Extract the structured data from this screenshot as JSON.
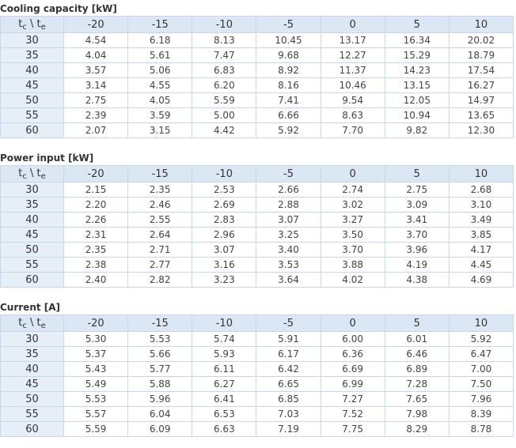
{
  "corner": [
    "t",
    "c",
    " \\ ",
    "t",
    "e"
  ],
  "columns": [
    "-20",
    "-15",
    "-10",
    "-5",
    "0",
    "5",
    "10"
  ],
  "tables": [
    {
      "title": "Cooling capacity [kW]",
      "rows": [
        [
          "30",
          "4.54",
          "6.18",
          "8.13",
          "10.45",
          "13.17",
          "16.34",
          "20.02"
        ],
        [
          "35",
          "4.04",
          "5.61",
          "7.47",
          "9.68",
          "12.27",
          "15.29",
          "18.79"
        ],
        [
          "40",
          "3.57",
          "5.06",
          "6.83",
          "8.92",
          "11.37",
          "14.23",
          "17.54"
        ],
        [
          "45",
          "3.14",
          "4.55",
          "6.20",
          "8.16",
          "10.46",
          "13.15",
          "16.27"
        ],
        [
          "50",
          "2.75",
          "4.05",
          "5.59",
          "7.41",
          "9.54",
          "12.05",
          "14.97"
        ],
        [
          "55",
          "2.39",
          "3.59",
          "5.00",
          "6.66",
          "8.63",
          "10.94",
          "13.65"
        ],
        [
          "60",
          "2.07",
          "3.15",
          "4.42",
          "5.92",
          "7.70",
          "9.82",
          "12.30"
        ]
      ]
    },
    {
      "title": "Power input [kW]",
      "rows": [
        [
          "30",
          "2.15",
          "2.35",
          "2.53",
          "2.66",
          "2.74",
          "2.75",
          "2.68"
        ],
        [
          "35",
          "2.20",
          "2.46",
          "2.69",
          "2.88",
          "3.02",
          "3.09",
          "3.10"
        ],
        [
          "40",
          "2.26",
          "2.55",
          "2.83",
          "3.07",
          "3.27",
          "3.41",
          "3.49"
        ],
        [
          "45",
          "2.31",
          "2.64",
          "2.96",
          "3.25",
          "3.50",
          "3.70",
          "3.85"
        ],
        [
          "50",
          "2.35",
          "2.71",
          "3.07",
          "3.40",
          "3.70",
          "3.96",
          "4.17"
        ],
        [
          "55",
          "2.38",
          "2.77",
          "3.16",
          "3.53",
          "3.88",
          "4.19",
          "4.45"
        ],
        [
          "60",
          "2.40",
          "2.82",
          "3.23",
          "3.64",
          "4.02",
          "4.38",
          "4.69"
        ]
      ]
    },
    {
      "title": "Current [A]",
      "rows": [
        [
          "30",
          "5.30",
          "5.53",
          "5.74",
          "5.91",
          "6.00",
          "6.01",
          "5.92"
        ],
        [
          "35",
          "5.37",
          "5.66",
          "5.93",
          "6.17",
          "6.36",
          "6.46",
          "6.47"
        ],
        [
          "40",
          "5.43",
          "5.77",
          "6.11",
          "6.42",
          "6.69",
          "6.89",
          "7.00"
        ],
        [
          "45",
          "5.49",
          "5.88",
          "6.27",
          "6.65",
          "6.99",
          "7.28",
          "7.50"
        ],
        [
          "50",
          "5.53",
          "5.96",
          "6.41",
          "6.85",
          "7.27",
          "7.65",
          "7.96"
        ],
        [
          "55",
          "5.57",
          "6.04",
          "6.53",
          "7.03",
          "7.52",
          "7.98",
          "8.39"
        ],
        [
          "60",
          "5.59",
          "6.09",
          "6.63",
          "7.19",
          "7.75",
          "8.29",
          "8.78"
        ]
      ]
    }
  ]
}
